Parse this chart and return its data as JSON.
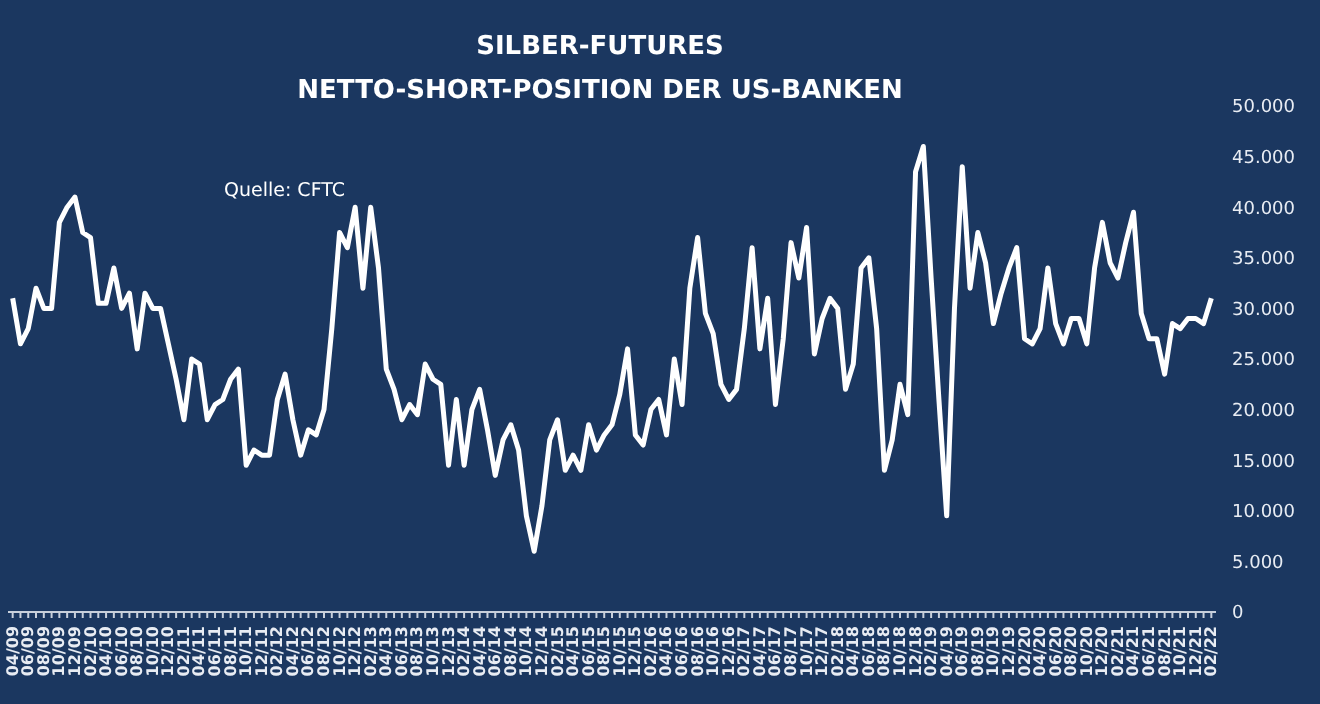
{
  "chart_data": {
    "type": "line",
    "title": "SILBER-FUTURES",
    "subtitle": "NETTO-SHORT-POSITION DER US-BANKEN",
    "annotations": [
      "Quelle: CFTC"
    ],
    "categories": [
      "04/09",
      null,
      "06/09",
      null,
      "08/09",
      null,
      "10/09",
      null,
      "12/09",
      null,
      "02/10",
      null,
      "04/10",
      null,
      "06/10",
      null,
      "08/10",
      null,
      "10/10",
      null,
      "12/10",
      null,
      "02/11",
      null,
      "04/11",
      null,
      "06/11",
      null,
      "08/11",
      null,
      "10/11",
      null,
      "12/11",
      null,
      "02/12",
      null,
      "04/12",
      null,
      "06/12",
      null,
      "08/12",
      null,
      "10/12",
      null,
      "12/12",
      null,
      "02/13",
      null,
      "04/13",
      null,
      "06/13",
      null,
      "08/13",
      null,
      "10/13",
      null,
      "12/13",
      null,
      "02/14",
      null,
      "04/14",
      null,
      "06/14",
      null,
      "08/14",
      null,
      "10/14",
      null,
      "12/14",
      null,
      "02/15",
      null,
      "04/15",
      null,
      "06/15",
      null,
      "08/15",
      null,
      "10/15",
      null,
      "12/15",
      null,
      "02/16",
      null,
      "04/16",
      null,
      "06/16",
      null,
      "08/16",
      null,
      "10/16",
      null,
      "12/16",
      null,
      "02/17",
      null,
      "04/17",
      null,
      "06/17",
      null,
      "08/17",
      null,
      "10/17",
      null,
      "12/17",
      null,
      "02/18",
      null,
      "04/18",
      null,
      "06/18",
      null,
      "08/18",
      null,
      "10/18",
      null,
      "12/18",
      null,
      "02/19",
      null,
      "04/19",
      null,
      "06/19",
      null,
      "08/19",
      null,
      "10/19",
      null,
      "12/19",
      null,
      "02/20",
      null,
      "04/20",
      null,
      "06/20",
      null,
      "08/20",
      null,
      "10/20",
      null,
      "12/20",
      null,
      "02/21",
      null,
      "04/21",
      null,
      "06/21",
      null,
      "08/21",
      null,
      "10/21",
      null,
      "12/21",
      null,
      "02/22"
    ],
    "values": [
      31000,
      26500,
      28000,
      32000,
      30000,
      30000,
      38500,
      40000,
      41000,
      37500,
      37000,
      30500,
      30500,
      34000,
      30000,
      31500,
      26000,
      31500,
      30000,
      30000,
      26500,
      23000,
      19000,
      25000,
      24500,
      19000,
      20500,
      21000,
      23000,
      24000,
      14500,
      16000,
      15500,
      15500,
      21000,
      23500,
      19000,
      15500,
      18000,
      17500,
      20000,
      28000,
      37500,
      36000,
      40000,
      32000,
      40000,
      34000,
      24000,
      22000,
      19000,
      20500,
      19500,
      24500,
      23000,
      22500,
      14500,
      21000,
      14500,
      20000,
      22000,
      18000,
      13500,
      17000,
      18500,
      16000,
      9500,
      6000,
      10500,
      17000,
      19000,
      14000,
      15500,
      14000,
      18500,
      16000,
      17500,
      18500,
      21500,
      26000,
      17500,
      16500,
      20000,
      21000,
      17500,
      25000,
      20500,
      32000,
      37000,
      29500,
      27500,
      22500,
      21000,
      22000,
      28000,
      36000,
      26000,
      31000,
      20500,
      27000,
      36500,
      33000,
      38000,
      25500,
      29000,
      31000,
      30000,
      22000,
      24500,
      34000,
      35000,
      28000,
      14000,
      17000,
      22500,
      19500,
      43500,
      46000,
      33000,
      21000,
      9500,
      30000,
      44000,
      32000,
      37500,
      34500,
      28500,
      31500,
      34000,
      36000,
      27000,
      26500,
      28000,
      34000,
      28500,
      26500,
      29000,
      29000,
      26500,
      34000,
      38500,
      34500,
      33000,
      36500,
      39500,
      29500,
      27000,
      27000,
      23500,
      28500,
      28000,
      29000,
      29000,
      28500,
      31000
    ],
    "color": "#ffffff",
    "marker": "none",
    "line_style": "solid",
    "grid": false,
    "ylim": [
      0,
      50000
    ],
    "yticks": [
      {
        "value": 0,
        "label": "0"
      },
      {
        "value": 5000,
        "label": "5.000"
      },
      {
        "value": 10000,
        "label": "10.000"
      },
      {
        "value": 15000,
        "label": "15.000"
      },
      {
        "value": 20000,
        "label": "20.000"
      },
      {
        "value": 25000,
        "label": "25.000"
      },
      {
        "value": 30000,
        "label": "30.000"
      },
      {
        "value": 35000,
        "label": "35.000"
      },
      {
        "value": 40000,
        "label": "40.000"
      },
      {
        "value": 45000,
        "label": "45.000"
      },
      {
        "value": 50000,
        "label": "50.000"
      }
    ]
  }
}
